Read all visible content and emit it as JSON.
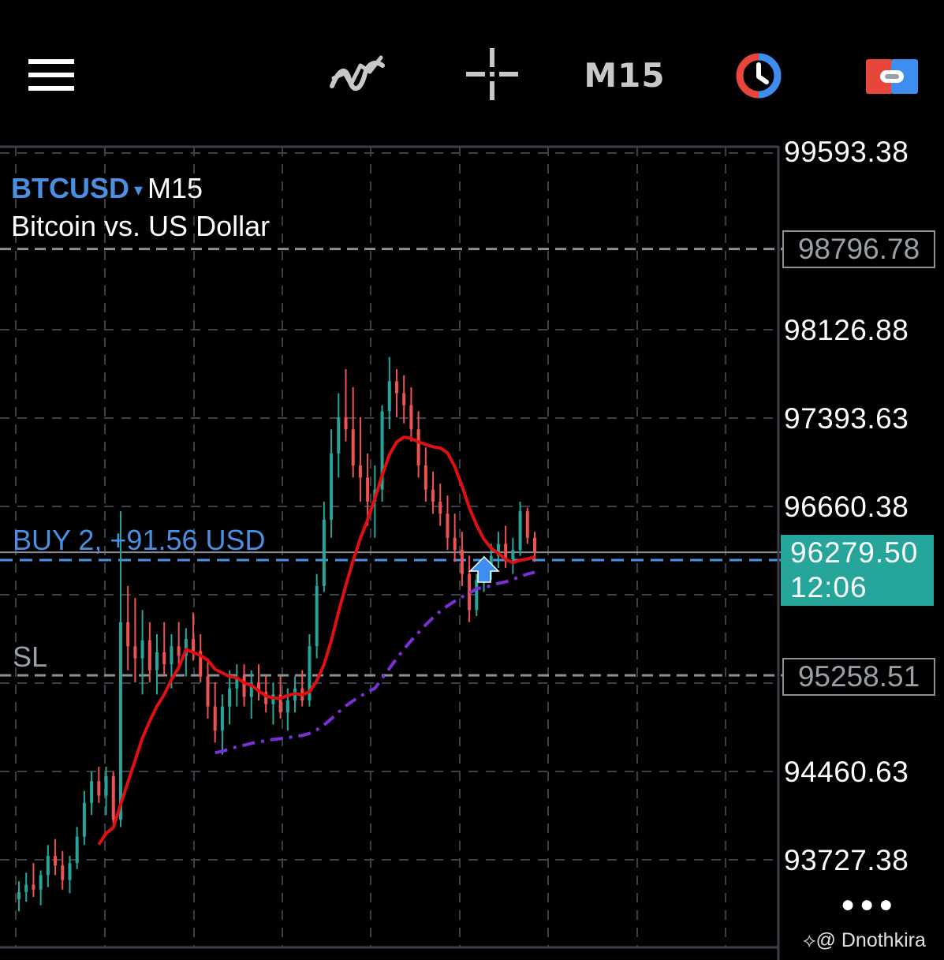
{
  "toolbar": {
    "menu_icon": "hamburger-menu-icon",
    "indicators_icon": "indicators-icon",
    "crosshair_icon": "crosshair-icon",
    "timeframe": "M15",
    "clock_icon": "clock-icon",
    "trade_icon": "trade-toggle-icon"
  },
  "symbol": {
    "ticker": "BTCUSD",
    "caret": "▾",
    "timeframe": "M15",
    "description": "Bitcoin vs. US Dollar"
  },
  "price_axis": {
    "labels": [
      "99593.38",
      "98126.88",
      "97393.63",
      "96660.38",
      "94460.63",
      "93727.38"
    ],
    "tp_level": "98796.78",
    "sl_level": "95258.51",
    "current_price": "96279.50",
    "countdown": "12:06"
  },
  "order": {
    "label": "BUY 2,  +91.56 USD",
    "sl_label": "SL"
  },
  "more_button": "●●●",
  "watermark": "@ Dnothkira",
  "colors": {
    "bull": "#26a69a",
    "bear": "#ef5350",
    "ma_fast": "#e01010",
    "ma_slow": "#7b2fd6",
    "order_line": "#4a90e2",
    "accent": "#4a90e2"
  },
  "chart_data": {
    "type": "candlestick",
    "symbol": "BTCUSD",
    "timeframe": "M15",
    "y_range": [
      93300,
      99700
    ],
    "current_price": 96279.5,
    "buy_entry": 96215,
    "take_profit": 98796.78,
    "stop_loss": 95258.51,
    "candles_ohlc": [
      [
        93400,
        93550,
        93300,
        93460
      ],
      [
        93460,
        93620,
        93380,
        93520
      ],
      [
        93520,
        93700,
        93420,
        93480
      ],
      [
        93480,
        93640,
        93350,
        93600
      ],
      [
        93600,
        93850,
        93500,
        93760
      ],
      [
        93760,
        93900,
        93600,
        93680
      ],
      [
        93680,
        93800,
        93480,
        93560
      ],
      [
        93560,
        93760,
        93450,
        93700
      ],
      [
        93700,
        94000,
        93650,
        93920
      ],
      [
        93920,
        94300,
        93850,
        94200
      ],
      [
        94200,
        94460,
        94100,
        94380
      ],
      [
        94380,
        94500,
        94200,
        94260
      ],
      [
        94260,
        94500,
        94100,
        94420
      ],
      [
        94420,
        94460,
        94000,
        94060
      ],
      [
        94060,
        96620,
        94000,
        95700
      ],
      [
        95700,
        96000,
        95300,
        95500
      ],
      [
        95500,
        95900,
        95200,
        95400
      ],
      [
        95400,
        95800,
        95100,
        95550
      ],
      [
        95550,
        95700,
        95200,
        95300
      ],
      [
        95300,
        95600,
        95100,
        95450
      ],
      [
        95450,
        95700,
        95250,
        95350
      ],
      [
        95350,
        95600,
        95150,
        95500
      ],
      [
        95500,
        95700,
        95300,
        95420
      ],
      [
        95420,
        95650,
        95250,
        95560
      ],
      [
        95560,
        95780,
        95380,
        95460
      ],
      [
        95460,
        95600,
        95200,
        95250
      ],
      [
        95250,
        95400,
        94900,
        95000
      ],
      [
        95000,
        95200,
        94700,
        94800
      ],
      [
        94800,
        95100,
        94600,
        95000
      ],
      [
        95000,
        95300,
        94850,
        95150
      ],
      [
        95150,
        95350,
        95000,
        95250
      ],
      [
        95250,
        95350,
        95000,
        95080
      ],
      [
        95080,
        95300,
        94900,
        95200
      ],
      [
        95200,
        95350,
        95050,
        95120
      ],
      [
        95120,
        95250,
        94950,
        95020
      ],
      [
        95020,
        95200,
        94850,
        95100
      ],
      [
        95100,
        95250,
        94900,
        94950
      ],
      [
        94950,
        95150,
        94800,
        95050
      ],
      [
        95050,
        95250,
        94950,
        95150
      ],
      [
        95150,
        95300,
        95000,
        95050
      ],
      [
        95050,
        95600,
        95000,
        95500
      ],
      [
        95500,
        96100,
        95400,
        96000
      ],
      [
        96000,
        96700,
        95950,
        96550
      ],
      [
        96550,
        97300,
        96400,
        97100
      ],
      [
        97100,
        97600,
        96900,
        97400
      ],
      [
        97400,
        97800,
        97200,
        97300
      ],
      [
        97300,
        97650,
        96900,
        97000
      ],
      [
        97000,
        97400,
        96700,
        96900
      ],
      [
        96900,
        97100,
        96500,
        96700
      ],
      [
        96700,
        97000,
        96400,
        96800
      ],
      [
        96800,
        97500,
        96700,
        97450
      ],
      [
        97450,
        97900,
        97300,
        97700
      ],
      [
        97700,
        97800,
        97400,
        97600
      ],
      [
        97600,
        97750,
        97350,
        97500
      ],
      [
        97500,
        97650,
        97200,
        97300
      ],
      [
        97300,
        97450,
        96900,
        97000
      ],
      [
        97000,
        97150,
        96700,
        96800
      ],
      [
        96800,
        96950,
        96600,
        96700
      ],
      [
        96700,
        96850,
        96500,
        96600
      ],
      [
        96600,
        96750,
        96300,
        96400
      ],
      [
        96400,
        96600,
        96200,
        96300
      ],
      [
        96300,
        96450,
        96000,
        96100
      ],
      [
        96100,
        96250,
        95700,
        95800
      ],
      [
        95800,
        96100,
        95750,
        96050
      ],
      [
        96050,
        96250,
        95950,
        96150
      ],
      [
        96150,
        96350,
        96050,
        96250
      ],
      [
        96250,
        96450,
        96150,
        96350
      ],
      [
        96350,
        96500,
        96150,
        96220
      ],
      [
        96220,
        96400,
        96100,
        96300
      ],
      [
        96300,
        96700,
        96250,
        96620
      ],
      [
        96620,
        96650,
        96350,
        96400
      ],
      [
        96400,
        96450,
        96200,
        96279.5
      ]
    ]
  }
}
